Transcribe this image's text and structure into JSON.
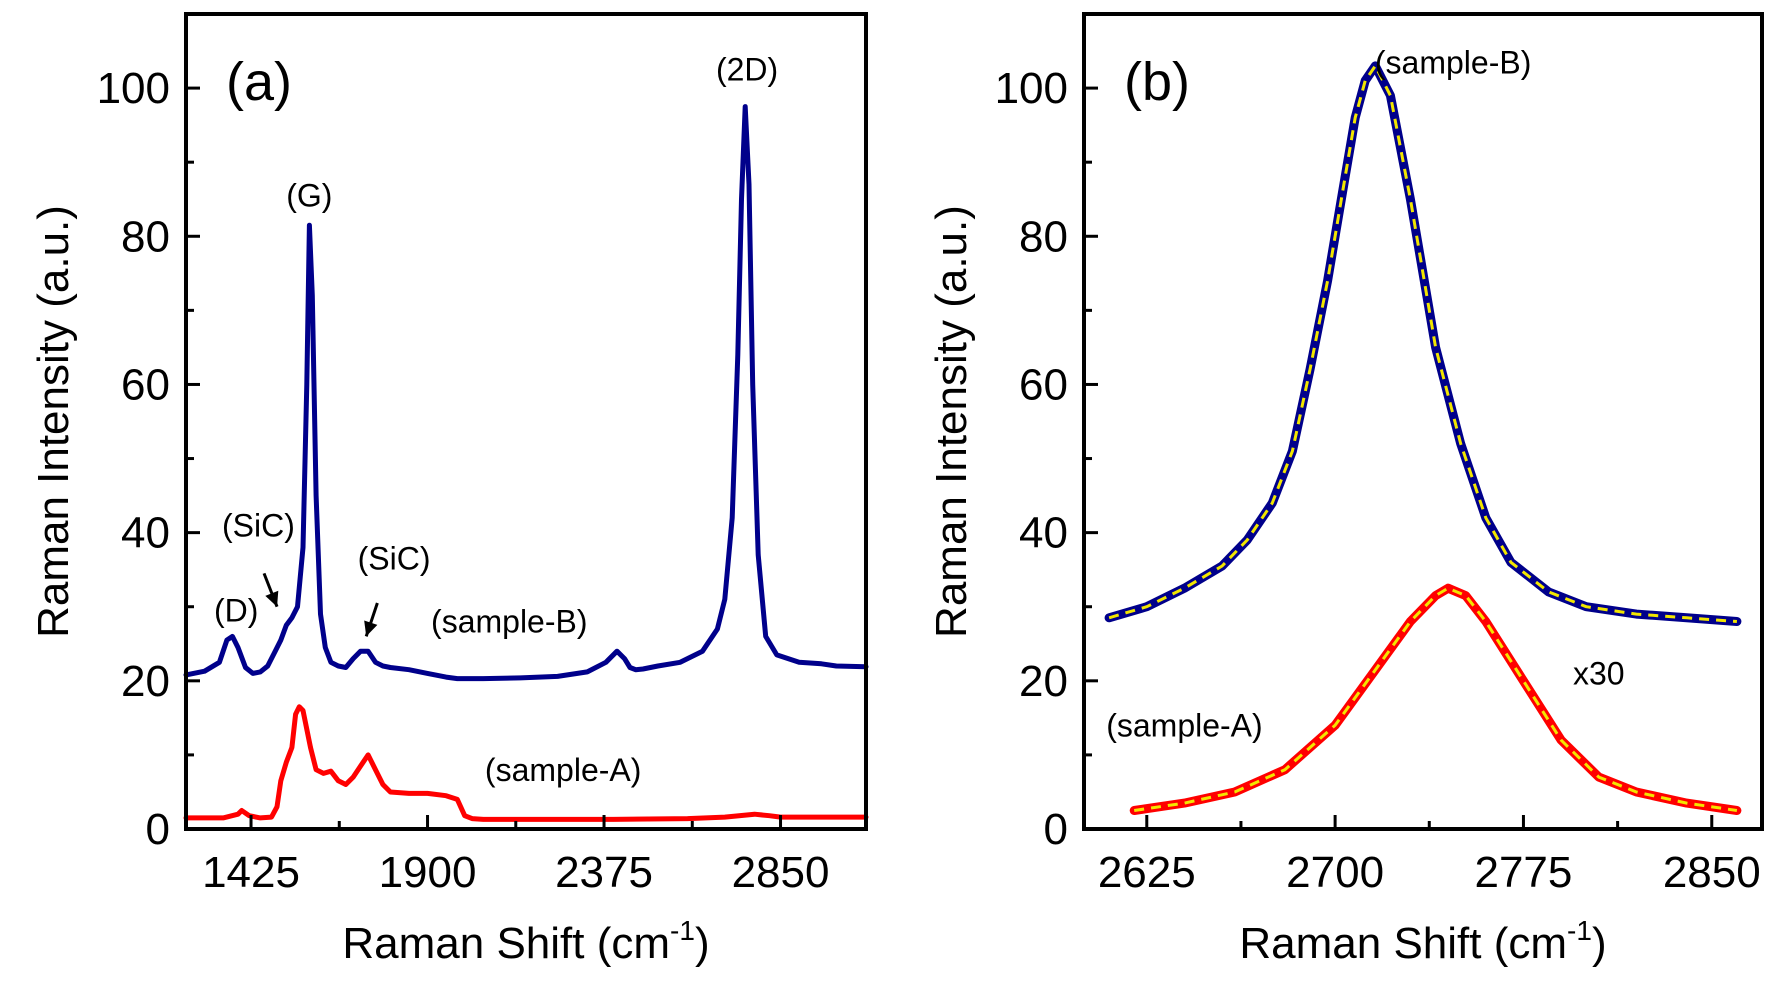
{
  "chart_data": [
    {
      "type": "line",
      "panel_label": "(a)",
      "xlabel": "Raman Shift (cm",
      "xlabel_sup": "-1",
      "xlabel_end": ")",
      "ylabel": "Raman Intensity (a.u.)",
      "xlim": [
        1250,
        3080
      ],
      "ylim": [
        0,
        110
      ],
      "xticks": [
        1425,
        1900,
        2375,
        2850
      ],
      "yticks": [
        0,
        20,
        40,
        60,
        80,
        100
      ],
      "grid": false,
      "series": [
        {
          "name": "(sample-B)",
          "color": "#00008b",
          "x": [
            1250,
            1300,
            1340,
            1360,
            1375,
            1390,
            1410,
            1430,
            1450,
            1470,
            1490,
            1505,
            1520,
            1535,
            1550,
            1565,
            1575,
            1582,
            1590,
            1600,
            1612,
            1625,
            1640,
            1660,
            1680,
            1700,
            1720,
            1740,
            1760,
            1780,
            1800,
            1850,
            1900,
            1950,
            1980,
            2050,
            2150,
            2250,
            2330,
            2380,
            2410,
            2430,
            2445,
            2460,
            2480,
            2520,
            2580,
            2640,
            2680,
            2700,
            2720,
            2735,
            2745,
            2755,
            2765,
            2775,
            2790,
            2810,
            2840,
            2900,
            2960,
            3000,
            3080
          ],
          "y": [
            20.8,
            21.3,
            22.5,
            25.5,
            26,
            24.5,
            21.8,
            21,
            21.2,
            22,
            24,
            25.5,
            27.5,
            28.5,
            30,
            38,
            60,
            81.5,
            72,
            45,
            29,
            24.5,
            22.5,
            22,
            21.8,
            23,
            24,
            24,
            22.5,
            22,
            21.8,
            21.5,
            21,
            20.5,
            20.3,
            20.3,
            20.4,
            20.6,
            21.2,
            22.5,
            24,
            23,
            21.8,
            21.5,
            21.6,
            22,
            22.5,
            24,
            27,
            31,
            42,
            64,
            85,
            97.5,
            87,
            60,
            37,
            26,
            23.5,
            22.5,
            22.3,
            22,
            21.9
          ]
        },
        {
          "name": "(sample-A)",
          "color": "#ff0000",
          "x": [
            1250,
            1350,
            1390,
            1400,
            1420,
            1450,
            1480,
            1495,
            1505,
            1520,
            1535,
            1545,
            1555,
            1565,
            1585,
            1600,
            1620,
            1640,
            1660,
            1680,
            1700,
            1720,
            1740,
            1760,
            1780,
            1800,
            1850,
            1900,
            1950,
            1980,
            2000,
            2020,
            2050,
            2200,
            2400,
            2600,
            2700,
            2780,
            2820,
            2850,
            3080
          ],
          "y": [
            1.5,
            1.5,
            2,
            2.5,
            1.8,
            1.5,
            1.6,
            3,
            6.5,
            9,
            11,
            15.5,
            16.5,
            16,
            11,
            8,
            7.5,
            7.8,
            6.5,
            6,
            7,
            8.5,
            10,
            8,
            6,
            5,
            4.8,
            4.8,
            4.5,
            4,
            1.8,
            1.4,
            1.3,
            1.3,
            1.3,
            1.4,
            1.6,
            2,
            1.8,
            1.6,
            1.6
          ]
        }
      ],
      "annotations": [
        {
          "text": "(D)",
          "x": 1385,
          "y": 28
        },
        {
          "text": "(SiC)",
          "x": 1445,
          "y": 39.5
        },
        {
          "text": "(G)",
          "x": 1582,
          "y": 84
        },
        {
          "text": "(SiC)",
          "x": 1810,
          "y": 35
        },
        {
          "text": "(sample-B)",
          "x": 2120,
          "y": 26.5
        },
        {
          "text": "(sample-A)",
          "x": 2265,
          "y": 6.5
        },
        {
          "text": "(2D)",
          "x": 2760,
          "y": 101
        }
      ],
      "arrows": [
        {
          "from": [
            1460,
            34.5
          ],
          "to": [
            1495,
            30
          ]
        },
        {
          "from": [
            1765,
            30.5
          ],
          "to": [
            1735,
            26
          ]
        }
      ]
    },
    {
      "type": "line",
      "panel_label": "(b)",
      "xlabel": "Raman Shift (cm",
      "xlabel_sup": "-1",
      "xlabel_end": ")",
      "ylabel": "Raman Intensity (a.u.)",
      "xlim": [
        2600,
        2870
      ],
      "ylim": [
        0,
        110
      ],
      "xticks": [
        2625,
        2700,
        2775,
        2850
      ],
      "yticks": [
        0,
        20,
        40,
        60,
        80,
        100
      ],
      "grid": false,
      "series": [
        {
          "name": "(sample-B)",
          "color": "#00008b",
          "x": [
            2610,
            2625,
            2640,
            2655,
            2665,
            2675,
            2683,
            2690,
            2697,
            2703,
            2708,
            2712,
            2716,
            2722,
            2730,
            2740,
            2750,
            2760,
            2770,
            2785,
            2800,
            2820,
            2840,
            2860
          ],
          "y": [
            28.5,
            30,
            32.5,
            35.5,
            39,
            44,
            51,
            62,
            74,
            86,
            96,
            101,
            103,
            99,
            85,
            65,
            52,
            42,
            36,
            32,
            30,
            29,
            28.5,
            28
          ]
        },
        {
          "name": "(sample-A)",
          "color": "#ff0000",
          "x": [
            2620,
            2640,
            2660,
            2680,
            2700,
            2715,
            2730,
            2740,
            2745,
            2752,
            2760,
            2775,
            2790,
            2805,
            2820,
            2840,
            2860
          ],
          "y": [
            2.5,
            3.5,
            5,
            8,
            14,
            21,
            28,
            31.5,
            32.5,
            31.5,
            28,
            20,
            12,
            7,
            5,
            3.5,
            2.5
          ]
        }
      ],
      "fit_color": "#f2e600",
      "annotations": [
        {
          "text": "(sample-B)",
          "x": 2747,
          "y": 102
        },
        {
          "text": "(sample-A)",
          "x": 2640,
          "y": 12.5
        },
        {
          "text": "x30",
          "x": 2805,
          "y": 19.5
        }
      ]
    }
  ]
}
